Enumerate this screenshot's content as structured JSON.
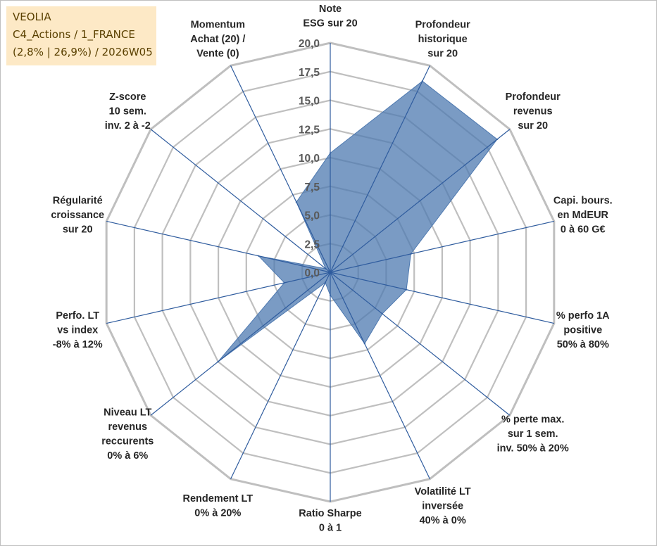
{
  "header": {
    "line1": "VEOLIA",
    "line2": "C4_Actions / 1_FRANCE",
    "line3": "(2,8% | 26,9%) / 2026W05"
  },
  "chart_data": {
    "type": "radar",
    "rlim": [
      0,
      20
    ],
    "tick_values": [
      0,
      2.5,
      5,
      7.5,
      10,
      12.5,
      15,
      17.5,
      20
    ],
    "tick_labels": [
      "0,0",
      "2,5",
      "5,0",
      "7,5",
      "10,0",
      "12,5",
      "15,0",
      "17,5",
      "20,0"
    ],
    "grid": true,
    "axes": [
      [
        "Note",
        "ESG sur 20"
      ],
      [
        "Profondeur",
        "historique",
        "sur 20"
      ],
      [
        "Profondeur",
        "revenus",
        "sur 20"
      ],
      [
        "Capi. bours.",
        "en MdEUR",
        "0 à 60 G€"
      ],
      [
        "% perfo 1A",
        "positive",
        "50% à 80%"
      ],
      [
        "% perte max.",
        "sur 1 sem.",
        "inv. 50% à 20%"
      ],
      [
        "Volatilité LT",
        "inversée",
        "40% à 0%"
      ],
      [
        "Ratio Sharpe",
        "0 à 1"
      ],
      [
        "Rendement LT",
        "0% à 20%"
      ],
      [
        "Niveau LT",
        "revenus",
        "reccurents",
        "0% à 6%"
      ],
      [
        "Perfo. LT",
        "vs index",
        "-8% à 12%"
      ],
      [
        "Régularité",
        "croissance",
        "sur 20"
      ],
      [
        "Z-score",
        "10 sem.",
        "inv. 2 à -2"
      ],
      [
        "Momentum",
        "Achat (20) /",
        "Vente (0)"
      ]
    ],
    "series": [
      {
        "values": [
          10.4,
          18.5,
          18.6,
          7.2,
          6.8,
          5.8,
          6.9,
          2.0,
          1.0,
          12.5,
          4.1,
          6.4,
          0.5,
          6.8
        ],
        "color": "#4e79b0"
      }
    ],
    "colors": {
      "fill": "#4e79b0",
      "fill_opacity": 0.75,
      "grid": "#bfbfbf",
      "spoke": "#2f5c9e",
      "header_bg": "#fde9c6"
    }
  }
}
